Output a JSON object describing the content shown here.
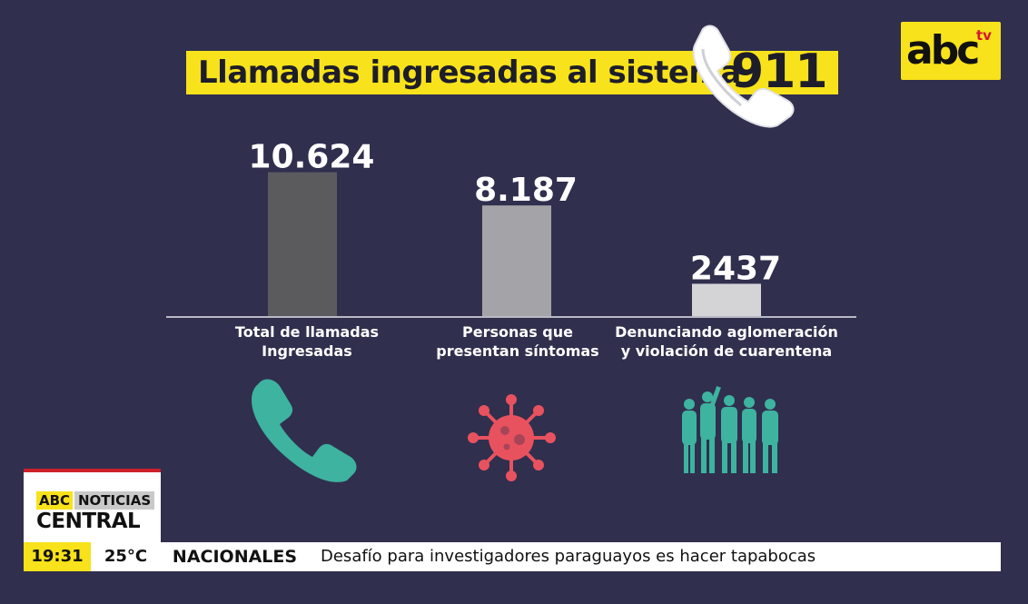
{
  "header": {
    "title": "Llamadas ingresadas al sistema",
    "number": "911"
  },
  "logo": {
    "main": "abc",
    "sub": "tv"
  },
  "colors": {
    "background": "#302f4e",
    "accent_yellow": "#f7e21b",
    "icon_teal": "#3db3a0",
    "icon_coral": "#e8525e"
  },
  "chart_data": {
    "type": "bar",
    "title": "Llamadas ingresadas al sistema 911",
    "categories": [
      [
        "Total de llamadas",
        "Ingresadas"
      ],
      [
        "Personas que",
        "presentan síntomas"
      ],
      [
        "Denunciando aglomeración",
        "y violación de cuarentena"
      ]
    ],
    "values": [
      10624,
      8187,
      2437
    ],
    "value_labels": [
      "10.624",
      "8.187",
      "2437"
    ],
    "bar_colors": [
      "#5b5b5e",
      "#a4a4a8",
      "#d4d4d7"
    ],
    "ylim": [
      0,
      12000
    ],
    "grid": false,
    "legend": "none",
    "icons": [
      "phone-icon",
      "virus-icon",
      "crowd-icon"
    ]
  },
  "ticker": {
    "brand_abc": "ABC",
    "brand_noticias": "NOTICIAS",
    "brand_central": "CENTRAL",
    "time": "19:31",
    "temperature": "25°C",
    "section": "NACIONALES",
    "headline": "Desafío para investigadores paraguayos es hacer tapabocas"
  }
}
